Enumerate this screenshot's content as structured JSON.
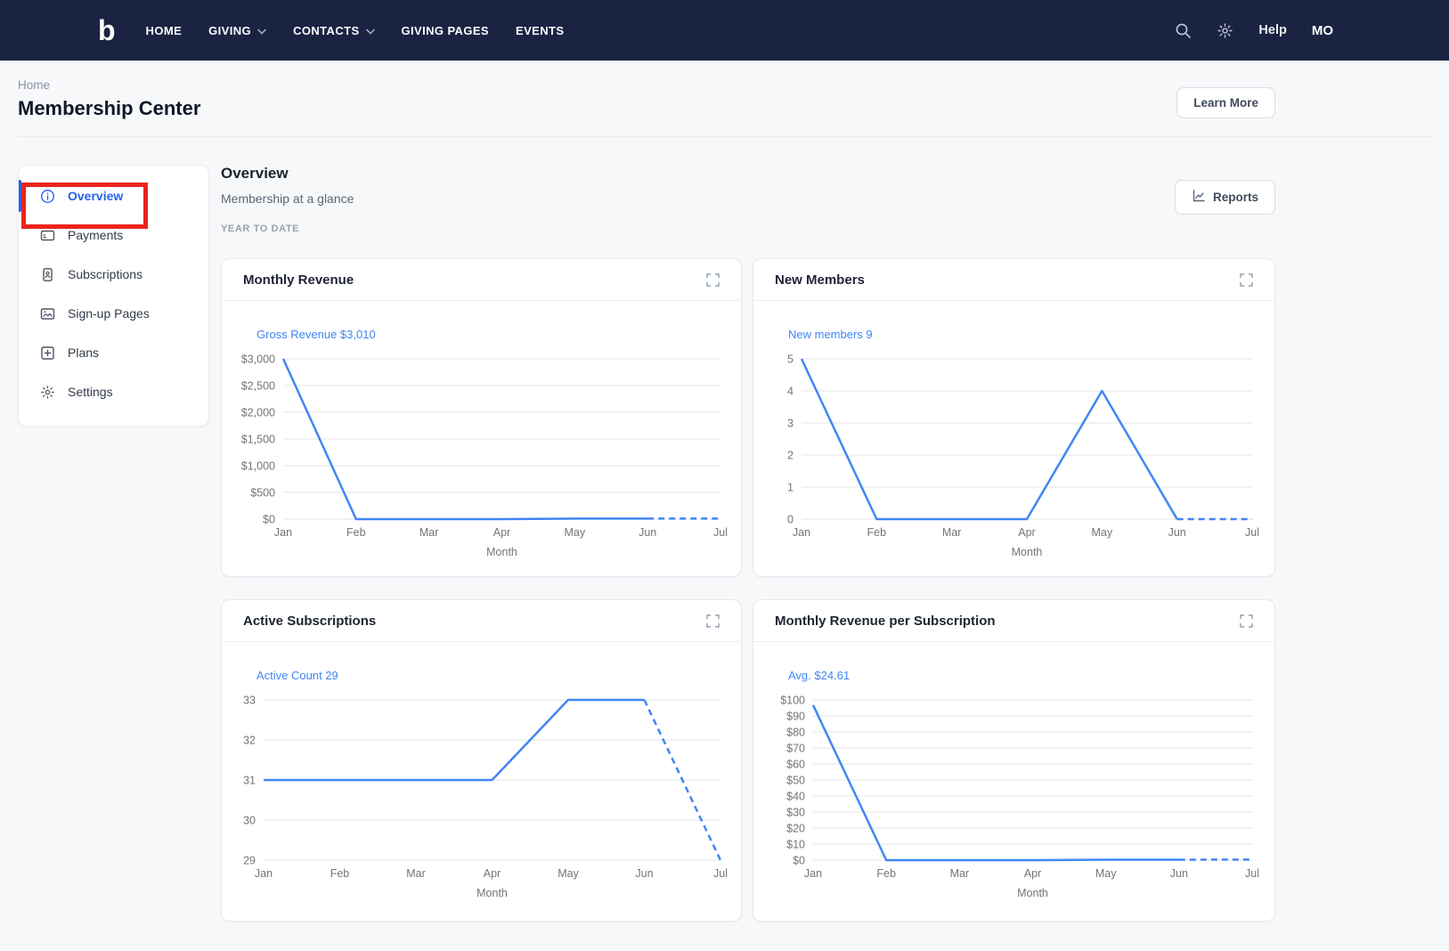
{
  "nav": {
    "logo": "b",
    "items": [
      {
        "label": "HOME",
        "has_dropdown": false
      },
      {
        "label": "GIVING",
        "has_dropdown": true
      },
      {
        "label": "CONTACTS",
        "has_dropdown": true
      },
      {
        "label": "GIVING PAGES",
        "has_dropdown": false
      },
      {
        "label": "EVENTS",
        "has_dropdown": false
      }
    ],
    "help_label": "Help",
    "user_initials": "MO"
  },
  "breadcrumb": "Home",
  "page_title": "Membership Center",
  "learn_more_label": "Learn More",
  "sidebar": {
    "items": [
      {
        "label": "Overview",
        "icon": "info-icon",
        "active": true
      },
      {
        "label": "Payments",
        "icon": "payment-card-icon",
        "active": false
      },
      {
        "label": "Subscriptions",
        "icon": "subscription-icon",
        "active": false
      },
      {
        "label": "Sign-up Pages",
        "icon": "image-icon",
        "active": false
      },
      {
        "label": "Plans",
        "icon": "plus-square-icon",
        "active": false
      },
      {
        "label": "Settings",
        "icon": "gear-icon",
        "active": false
      }
    ]
  },
  "main": {
    "title": "Overview",
    "subtitle": "Membership at a glance",
    "period_label": "YEAR TO DATE",
    "reports_label": "Reports"
  },
  "colors": {
    "nav_bg": "#1a2342",
    "accent_blue": "#2563eb",
    "series_blue": "#4285f4",
    "annotation_red": "#ea241c",
    "grid_gray": "#e6e6e6",
    "axis_text": "#70757a"
  },
  "chart_data": [
    {
      "type": "line",
      "card_title": "Monthly Revenue",
      "legend": "Gross Revenue $3,010",
      "categories": [
        "Jan",
        "Feb",
        "Mar",
        "Apr",
        "May",
        "Jun",
        "Jul"
      ],
      "values": [
        3000,
        0,
        0,
        0,
        10,
        10,
        10
      ],
      "xlabel": "Month",
      "ylim": [
        0,
        3000
      ],
      "yticks": [
        [
          0,
          "$0"
        ],
        [
          500,
          "$500"
        ],
        [
          1000,
          "$1,000"
        ],
        [
          1500,
          "$1,500"
        ],
        [
          2000,
          "$2,000"
        ],
        [
          2500,
          "$2,500"
        ],
        [
          3000,
          "$3,000"
        ]
      ],
      "dashed_from": 5,
      "series_color": "#4285f4",
      "grid": true,
      "legend_position": "top-left",
      "label_width": 57
    },
    {
      "type": "line",
      "card_title": "New Members",
      "legend": "New members 9",
      "categories": [
        "Jan",
        "Feb",
        "Mar",
        "Apr",
        "May",
        "Jun",
        "Jul"
      ],
      "values": [
        5,
        0,
        0,
        0,
        4,
        0,
        0
      ],
      "xlabel": "Month",
      "ylim": [
        0,
        5
      ],
      "yticks": [
        [
          0,
          "0"
        ],
        [
          1,
          "1"
        ],
        [
          2,
          "2"
        ],
        [
          3,
          "3"
        ],
        [
          4,
          "4"
        ],
        [
          5,
          "5"
        ]
      ],
      "dashed_from": 5,
      "series_color": "#4285f4",
      "grid": true,
      "legend_position": "top-left",
      "label_width": 42
    },
    {
      "type": "line",
      "card_title": "Active Subscriptions",
      "legend": "Active Count 29",
      "categories": [
        "Jan",
        "Feb",
        "Mar",
        "Apr",
        "May",
        "Jun",
        "Jul"
      ],
      "values": [
        31,
        31,
        31,
        31,
        33,
        33,
        29
      ],
      "xlabel": "Month",
      "ylim": [
        29,
        33
      ],
      "yticks": [
        [
          29,
          "29"
        ],
        [
          30,
          "30"
        ],
        [
          31,
          "31"
        ],
        [
          32,
          "32"
        ],
        [
          33,
          "33"
        ]
      ],
      "dashed_from": 5,
      "series_color": "#4285f4",
      "grid": true,
      "legend_position": "top-left",
      "label_width": 35
    },
    {
      "type": "line",
      "card_title": "Monthly Revenue per Subscription",
      "legend": "Avg. $24.61",
      "categories": [
        "Jan",
        "Feb",
        "Mar",
        "Apr",
        "May",
        "Jun",
        "Jul"
      ],
      "values": [
        96.77,
        0,
        0,
        0,
        0.3,
        0.3,
        0.34
      ],
      "xlabel": "Month",
      "ylim": [
        0,
        100
      ],
      "yticks": [
        [
          0,
          "$0"
        ],
        [
          10,
          "$10"
        ],
        [
          20,
          "$20"
        ],
        [
          30,
          "$30"
        ],
        [
          40,
          "$40"
        ],
        [
          50,
          "$50"
        ],
        [
          60,
          "$60"
        ],
        [
          70,
          "$70"
        ],
        [
          80,
          "$80"
        ],
        [
          90,
          "$90"
        ],
        [
          100,
          "$100"
        ]
      ],
      "dashed_from": 5,
      "series_color": "#4285f4",
      "grid": true,
      "legend_position": "top-left",
      "label_width": 55
    }
  ]
}
